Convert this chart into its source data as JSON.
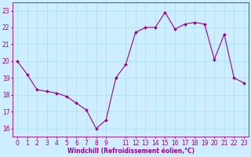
{
  "x": [
    0,
    1,
    2,
    3,
    4,
    5,
    6,
    7,
    8,
    9,
    10,
    11,
    12,
    13,
    14,
    15,
    16,
    17,
    18,
    19,
    20,
    21,
    22,
    23
  ],
  "y": [
    20.0,
    19.2,
    18.3,
    18.2,
    18.1,
    17.9,
    17.5,
    17.1,
    16.0,
    16.5,
    19.0,
    19.8,
    21.7,
    22.0,
    22.0,
    22.9,
    21.9,
    22.2,
    22.3,
    22.2,
    20.1,
    21.6,
    19.0,
    18.7
  ],
  "line_color": "#990099",
  "marker": "D",
  "marker_size": 2.0,
  "bg_color": "#cceeff",
  "grid_color": "#aaddee",
  "xlabel": "Windchill (Refroidissement éolien,°C)",
  "xlabel_color": "#990099",
  "xlabel_fontsize": 5.5,
  "tick_color": "#990099",
  "tick_fontsize": 5.5,
  "ylim": [
    15.5,
    23.5
  ],
  "xlim": [
    -0.5,
    23.5
  ],
  "yticks": [
    16,
    17,
    18,
    19,
    20,
    21,
    22,
    23
  ],
  "xtick_positions": [
    0,
    1,
    2,
    3,
    4,
    5,
    6,
    7,
    8,
    9,
    11,
    12,
    13,
    14,
    15,
    16,
    17,
    18,
    19,
    20,
    21,
    22,
    23
  ],
  "xtick_labels": [
    "0",
    "1",
    "2",
    "3",
    "4",
    "5",
    "6",
    "7",
    "8",
    "9",
    "11",
    "12",
    "13",
    "14",
    "15",
    "16",
    "17",
    "18",
    "19",
    "20",
    "21",
    "22",
    "23"
  ]
}
